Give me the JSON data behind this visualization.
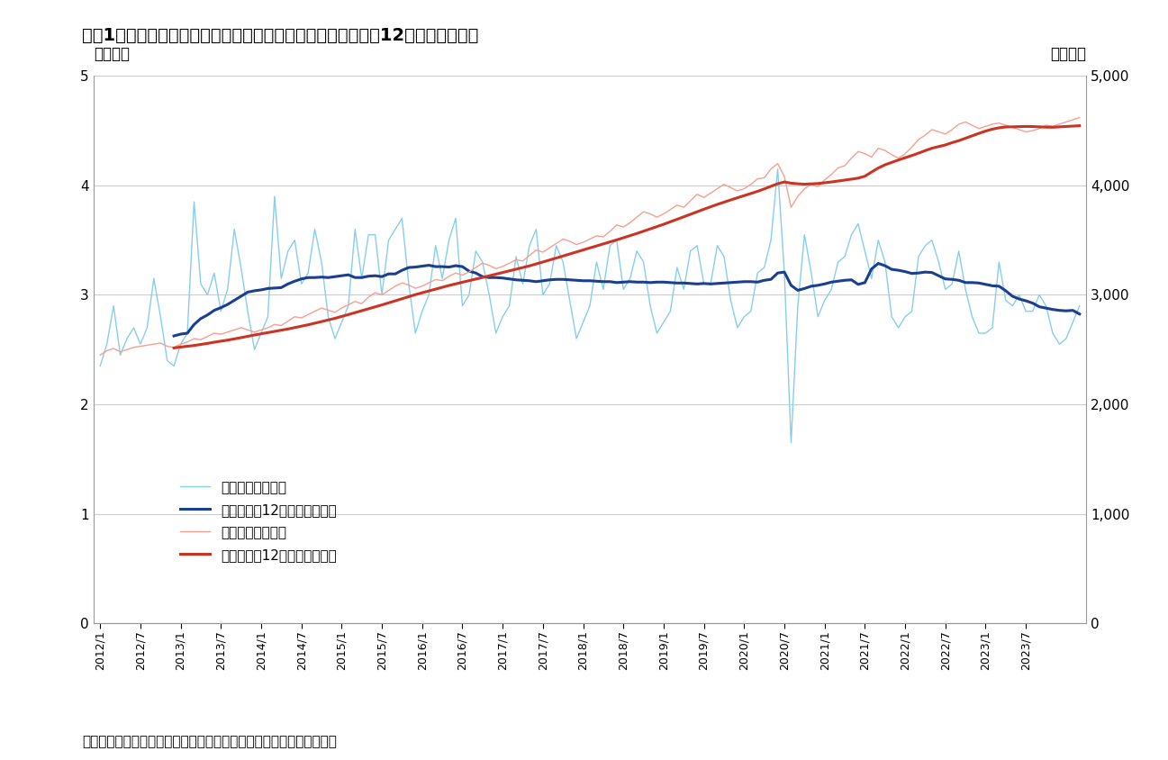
{
  "title": "図袅1　首都圏中古マンションの成約価格と成約件数（月次、12ケ月移動平均）",
  "ylabel_left": "（千戸）",
  "ylabel_right": "（万円）",
  "caption": "（資料）東日本レインズの公表データからニッセイ基础研究所が作成",
  "left_ylim": [
    0,
    5
  ],
  "right_ylim": [
    0,
    5000
  ],
  "left_yticks": [
    0,
    1,
    2,
    3,
    4,
    5
  ],
  "right_yticks": [
    0,
    1000,
    2000,
    3000,
    4000,
    5000
  ],
  "legend_entries": [
    "成約件数（月次）",
    "成約件数（12ケ月移動平均）",
    "成約価格（月次）",
    "成約価格（12ケ月移動平均）"
  ],
  "colors": {
    "count_monthly": "#87CEEB",
    "count_ma": "#1A3F8F",
    "price_monthly": "#F4A090",
    "price_ma": "#CC3322"
  },
  "line_widths": {
    "count_monthly": 1.0,
    "count_ma": 2.2,
    "price_monthly": 1.0,
    "price_ma": 2.2
  },
  "background_color": "#FFFFFF",
  "grid_color": "#CCCCCC",
  "count_monthly": [
    2.35,
    2.55,
    2.9,
    2.45,
    2.6,
    2.7,
    2.55,
    2.7,
    3.15,
    2.8,
    2.4,
    2.35,
    2.55,
    2.65,
    3.85,
    3.1,
    3.0,
    3.2,
    2.85,
    3.05,
    3.6,
    3.25,
    2.85,
    2.5,
    2.65,
    2.8,
    3.9,
    3.15,
    3.4,
    3.5,
    3.1,
    3.2,
    3.6,
    3.3,
    2.8,
    2.6,
    2.75,
    2.9,
    3.6,
    3.15,
    3.55,
    3.55,
    3.0,
    3.5,
    3.6,
    3.7,
    3.1,
    2.65,
    2.85,
    3.0,
    3.45,
    3.15,
    3.5,
    3.7,
    2.9,
    3.0,
    3.4,
    3.3,
    3.0,
    2.65,
    2.8,
    2.9,
    3.35,
    3.1,
    3.45,
    3.6,
    3.0,
    3.1,
    3.45,
    3.3,
    2.95,
    2.6,
    2.75,
    2.9,
    3.3,
    3.05,
    3.45,
    3.5,
    3.05,
    3.15,
    3.4,
    3.3,
    2.9,
    2.65,
    2.75,
    2.85,
    3.25,
    3.05,
    3.4,
    3.45,
    3.1,
    3.1,
    3.45,
    3.35,
    2.95,
    2.7,
    2.8,
    2.85,
    3.2,
    3.25,
    3.5,
    4.15,
    3.2,
    1.65,
    2.9,
    3.55,
    3.2,
    2.8,
    2.95,
    3.05,
    3.3,
    3.35,
    3.55,
    3.65,
    3.4,
    3.15,
    3.5,
    3.3,
    2.8,
    2.7,
    2.8,
    2.85,
    3.35,
    3.45,
    3.5,
    3.3,
    3.05,
    3.1,
    3.4,
    3.05,
    2.8,
    2.65,
    2.65,
    2.7,
    3.3,
    2.95,
    2.9,
    3.0,
    2.85,
    2.85,
    3.0,
    2.9,
    2.65,
    2.55,
    2.6,
    2.75,
    2.9
  ],
  "price_monthly": [
    2450,
    2490,
    2510,
    2480,
    2500,
    2520,
    2530,
    2540,
    2550,
    2560,
    2530,
    2520,
    2550,
    2570,
    2600,
    2590,
    2620,
    2650,
    2640,
    2660,
    2680,
    2700,
    2680,
    2660,
    2680,
    2700,
    2730,
    2720,
    2760,
    2800,
    2790,
    2820,
    2850,
    2880,
    2860,
    2840,
    2880,
    2910,
    2940,
    2920,
    2980,
    3020,
    3000,
    3040,
    3080,
    3110,
    3090,
    3060,
    3080,
    3110,
    3140,
    3130,
    3170,
    3200,
    3180,
    3210,
    3250,
    3290,
    3270,
    3240,
    3260,
    3290,
    3320,
    3310,
    3360,
    3410,
    3390,
    3430,
    3470,
    3510,
    3490,
    3460,
    3480,
    3510,
    3540,
    3530,
    3580,
    3640,
    3620,
    3660,
    3710,
    3760,
    3740,
    3710,
    3740,
    3780,
    3820,
    3800,
    3860,
    3920,
    3890,
    3930,
    3970,
    4010,
    3980,
    3950,
    3970,
    4010,
    4060,
    4070,
    4150,
    4200,
    4080,
    3800,
    3900,
    3970,
    4010,
    3990,
    4050,
    4100,
    4160,
    4180,
    4250,
    4310,
    4290,
    4260,
    4340,
    4320,
    4280,
    4250,
    4290,
    4350,
    4420,
    4460,
    4510,
    4490,
    4470,
    4510,
    4560,
    4580,
    4550,
    4520,
    4540,
    4560,
    4570,
    4550,
    4530,
    4510,
    4490,
    4500,
    4520,
    4550,
    4540,
    4560,
    4580,
    4600,
    4620
  ]
}
